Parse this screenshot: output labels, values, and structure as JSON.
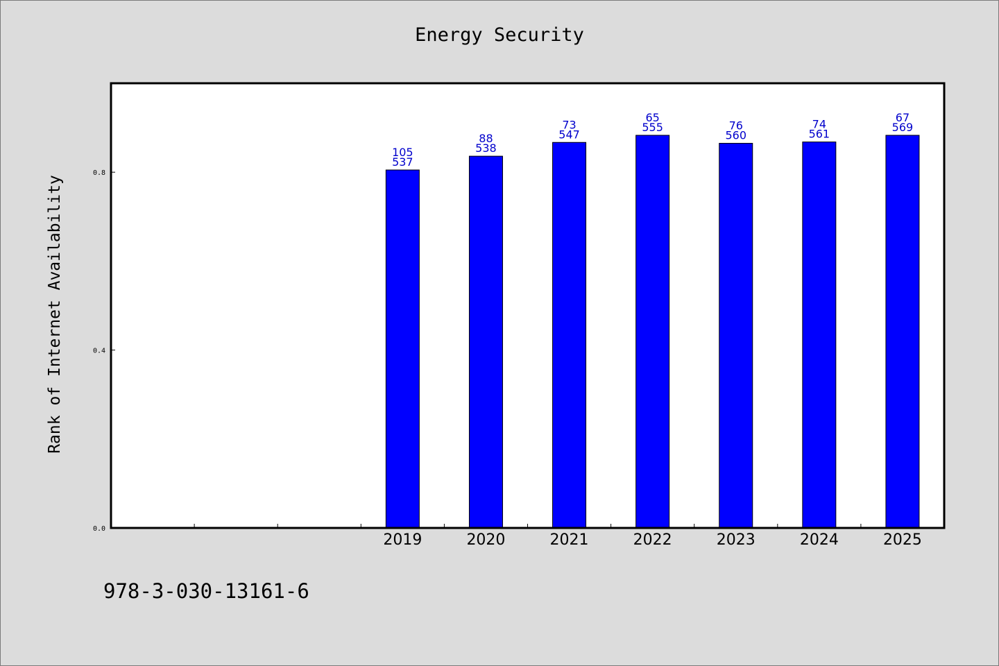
{
  "chart_data": {
    "type": "bar",
    "title": "Energy Security",
    "xlabel": "",
    "ylabel": "Rank of Internet Availability",
    "categories": [
      "",
      "",
      "",
      "2019",
      "2020",
      "2021",
      "2022",
      "2023",
      "2024",
      "2025"
    ],
    "values": [
      null,
      null,
      null,
      0.805,
      0.836,
      0.867,
      0.883,
      0.865,
      0.868,
      0.883
    ],
    "annotations": [
      null,
      null,
      null,
      [
        "105",
        "537"
      ],
      [
        "88",
        "538"
      ],
      [
        "73",
        "547"
      ],
      [
        "65",
        "555"
      ],
      [
        "76",
        "560"
      ],
      [
        "74",
        "561"
      ],
      [
        "67",
        "569"
      ]
    ],
    "yticks": [
      "0.0",
      "0.4",
      "0.8"
    ],
    "ylim": [
      0,
      1.0
    ],
    "grid": false,
    "legend": "none",
    "colors": {
      "bar": "#0000ff",
      "label": "#0000cc",
      "background": "#dcdcdc",
      "plot": "#ffffff"
    }
  },
  "footer": {
    "id": "978-3-030-13161-6"
  }
}
